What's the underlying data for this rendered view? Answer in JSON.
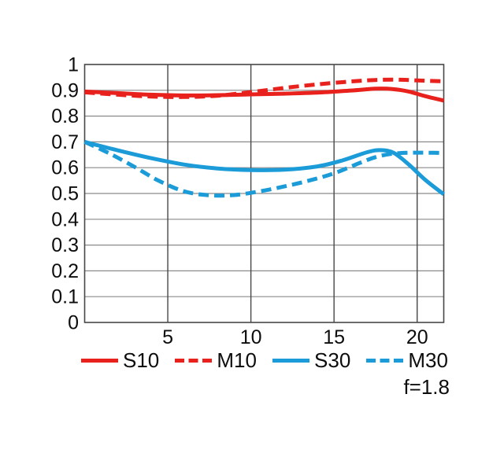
{
  "chart_data": {
    "type": "line",
    "title": "",
    "xlabel": "",
    "ylabel": "",
    "xlim": [
      0,
      21.6
    ],
    "ylim": [
      0,
      1
    ],
    "grid": true,
    "legend_position": "bottom",
    "xticks": {
      "values": [
        5,
        10,
        15,
        20
      ],
      "labels": [
        "5",
        "10",
        "15",
        "20"
      ]
    },
    "yticks": {
      "values": [
        0,
        0.1,
        0.2,
        0.3,
        0.4,
        0.5,
        0.6,
        0.7,
        0.8,
        0.9,
        1
      ],
      "labels": [
        "0",
        "0.1",
        "0.2",
        "0.3",
        "0.4",
        "0.5",
        "0.6",
        "0.7",
        "0.8",
        "0.9",
        "1"
      ]
    },
    "series": [
      {
        "name": "S10",
        "color": "#e8211d",
        "line_style": "solid",
        "x": [
          0,
          2,
          4,
          6,
          8,
          10,
          12,
          14,
          16,
          17.5,
          18.5,
          19.5,
          20.5,
          21.6
        ],
        "y": [
          0.895,
          0.889,
          0.883,
          0.88,
          0.881,
          0.884,
          0.887,
          0.891,
          0.899,
          0.906,
          0.905,
          0.895,
          0.877,
          0.86
        ]
      },
      {
        "name": "M10",
        "color": "#e8211d",
        "line_style": "dashed",
        "x": [
          0,
          2,
          4,
          6,
          8,
          10,
          12,
          14,
          16,
          17.5,
          19,
          20,
          21.6
        ],
        "y": [
          0.892,
          0.883,
          0.876,
          0.874,
          0.879,
          0.893,
          0.909,
          0.923,
          0.934,
          0.94,
          0.941,
          0.938,
          0.935
        ]
      },
      {
        "name": "S30",
        "color": "#1b9cd8",
        "line_style": "solid",
        "x": [
          0,
          2,
          4,
          6,
          8,
          10,
          12,
          14,
          15.5,
          17,
          17.8,
          18.6,
          19.5,
          20.5,
          21.6
        ],
        "y": [
          0.7,
          0.667,
          0.637,
          0.612,
          0.597,
          0.591,
          0.592,
          0.605,
          0.628,
          0.66,
          0.668,
          0.657,
          0.612,
          0.552,
          0.497
        ]
      },
      {
        "name": "M30",
        "color": "#1b9cd8",
        "line_style": "dashed",
        "x": [
          0,
          1.5,
          3,
          4.5,
          6,
          7.5,
          9,
          10.5,
          12,
          13.5,
          15,
          16.5,
          17.5,
          18.5,
          19.5,
          20.5,
          21.6
        ],
        "y": [
          0.7,
          0.655,
          0.603,
          0.548,
          0.508,
          0.493,
          0.494,
          0.508,
          0.527,
          0.55,
          0.578,
          0.617,
          0.641,
          0.654,
          0.658,
          0.658,
          0.657
        ]
      }
    ]
  },
  "annotations": {
    "f_label": "f=1.8"
  },
  "colors": {
    "red": "#e8211d",
    "blue": "#1b9cd8"
  }
}
